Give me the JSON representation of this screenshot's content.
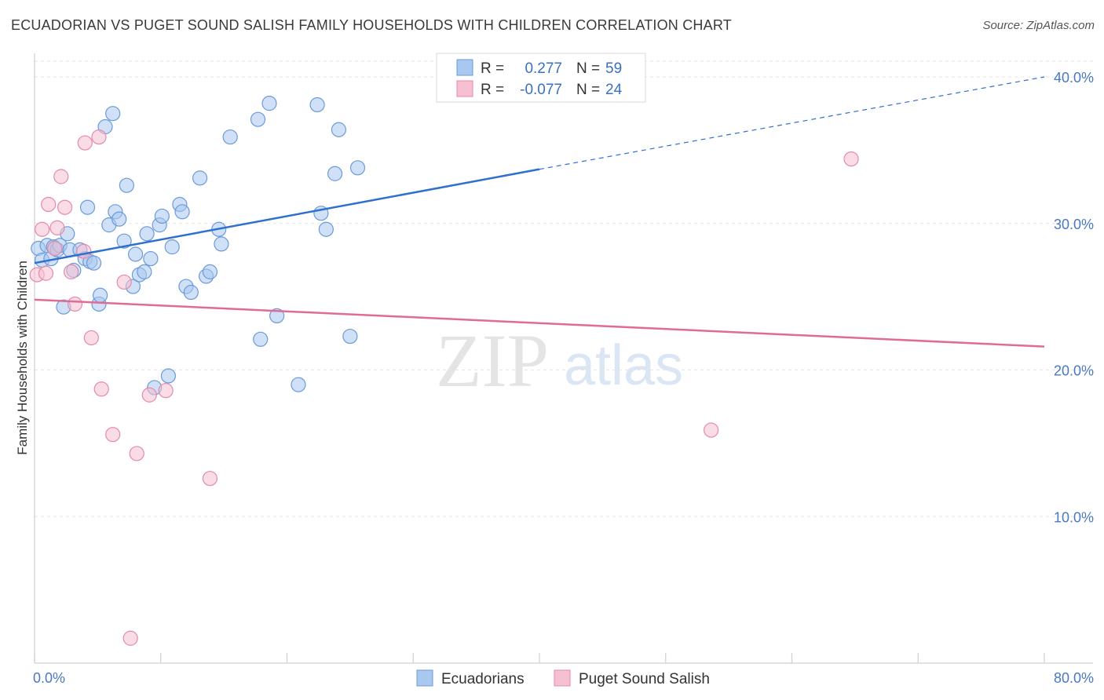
{
  "title": "ECUADORIAN VS PUGET SOUND SALISH FAMILY HOUSEHOLDS WITH CHILDREN CORRELATION CHART",
  "source": "Source: ZipAtlas.com",
  "watermark": {
    "zip": "ZIP",
    "atlas": "atlas"
  },
  "legend_top": [
    {
      "r_label": "R =",
      "r_value": "0.277",
      "n_label": "N =",
      "n_value": "59",
      "color": "#a9c8f0",
      "stroke": "#6a9ad8"
    },
    {
      "r_label": "R =",
      "r_value": "-0.077",
      "n_label": "N =",
      "n_value": "24",
      "color": "#f6c0d2",
      "stroke": "#e48aa8"
    }
  ],
  "legend_bottom": [
    "Ecuadorians",
    "Puget Sound Salish"
  ],
  "chart_data": {
    "type": "scatter",
    "title": "ECUADORIAN VS PUGET SOUND SALISH FAMILY HOUSEHOLDS WITH CHILDREN CORRELATION CHART",
    "xlabel": "",
    "ylabel": "Family Households with Children",
    "xlim": [
      0,
      80
    ],
    "ylim": [
      0,
      41.5
    ],
    "x_tick_labels": [
      "0.0%",
      "80.0%"
    ],
    "y_ticks": [
      10,
      20,
      30,
      40
    ],
    "y_tick_labels": [
      "10.0%",
      "20.0%",
      "30.0%",
      "40.0%"
    ],
    "grid": true,
    "series": [
      {
        "name": "Ecuadorians",
        "color": "#a9c8f0",
        "stroke": "#6a9ad8",
        "line_color": "#2f6fce",
        "trend": {
          "x0": 0,
          "y0": 27.3,
          "x1": 40,
          "y1": 33.7,
          "dash_to_x": 80,
          "dash_to_y": 40.0
        },
        "points": [
          [
            0.3,
            28.3
          ],
          [
            0.6,
            27.5
          ],
          [
            1.0,
            28.5
          ],
          [
            1.3,
            27.6
          ],
          [
            1.5,
            28.4
          ],
          [
            1.6,
            28.3
          ],
          [
            1.8,
            28.2
          ],
          [
            2.0,
            28.5
          ],
          [
            2.3,
            24.3
          ],
          [
            2.6,
            29.3
          ],
          [
            2.8,
            28.2
          ],
          [
            3.1,
            26.8
          ],
          [
            3.6,
            28.2
          ],
          [
            4.0,
            27.6
          ],
          [
            4.2,
            31.1
          ],
          [
            4.4,
            27.4
          ],
          [
            4.7,
            27.3
          ],
          [
            5.1,
            24.5
          ],
          [
            5.2,
            25.1
          ],
          [
            5.6,
            36.6
          ],
          [
            5.9,
            29.9
          ],
          [
            6.2,
            37.5
          ],
          [
            6.4,
            30.8
          ],
          [
            6.7,
            30.3
          ],
          [
            7.1,
            28.8
          ],
          [
            7.3,
            32.6
          ],
          [
            7.8,
            25.7
          ],
          [
            8.0,
            27.9
          ],
          [
            8.3,
            26.5
          ],
          [
            8.7,
            26.7
          ],
          [
            8.9,
            29.3
          ],
          [
            9.2,
            27.6
          ],
          [
            9.5,
            18.8
          ],
          [
            9.9,
            29.9
          ],
          [
            10.1,
            30.5
          ],
          [
            10.6,
            19.6
          ],
          [
            10.9,
            28.4
          ],
          [
            11.5,
            31.3
          ],
          [
            11.7,
            30.8
          ],
          [
            12.0,
            25.7
          ],
          [
            12.4,
            25.3
          ],
          [
            13.1,
            33.1
          ],
          [
            13.6,
            26.4
          ],
          [
            13.9,
            26.7
          ],
          [
            14.6,
            29.6
          ],
          [
            14.8,
            28.6
          ],
          [
            15.5,
            35.9
          ],
          [
            17.7,
            37.1
          ],
          [
            17.9,
            22.1
          ],
          [
            18.6,
            38.2
          ],
          [
            19.2,
            23.7
          ],
          [
            20.9,
            19.0
          ],
          [
            22.4,
            38.1
          ],
          [
            22.7,
            30.7
          ],
          [
            23.1,
            29.6
          ],
          [
            23.8,
            33.4
          ],
          [
            24.1,
            36.4
          ],
          [
            25.0,
            22.3
          ],
          [
            25.6,
            33.8
          ]
        ]
      },
      {
        "name": "Puget Sound Salish",
        "color": "#f6c0d2",
        "stroke": "#e48aa8",
        "line_color": "#e06b96",
        "trend": {
          "x0": 0,
          "y0": 24.8,
          "x1": 80,
          "y1": 21.6
        },
        "points": [
          [
            0.2,
            26.5
          ],
          [
            0.6,
            29.6
          ],
          [
            0.9,
            26.6
          ],
          [
            1.1,
            31.3
          ],
          [
            1.6,
            28.3
          ],
          [
            1.8,
            29.7
          ],
          [
            2.1,
            33.2
          ],
          [
            2.4,
            31.1
          ],
          [
            2.9,
            26.7
          ],
          [
            3.2,
            24.5
          ],
          [
            3.9,
            28.1
          ],
          [
            4.0,
            35.5
          ],
          [
            4.5,
            22.2
          ],
          [
            5.1,
            35.9
          ],
          [
            5.3,
            18.7
          ],
          [
            6.2,
            15.6
          ],
          [
            7.1,
            26.0
          ],
          [
            7.6,
            1.7
          ],
          [
            8.1,
            14.3
          ],
          [
            9.1,
            18.3
          ],
          [
            10.4,
            18.6
          ],
          [
            13.9,
            12.6
          ],
          [
            53.6,
            15.9
          ],
          [
            64.7,
            34.4
          ]
        ]
      }
    ]
  }
}
